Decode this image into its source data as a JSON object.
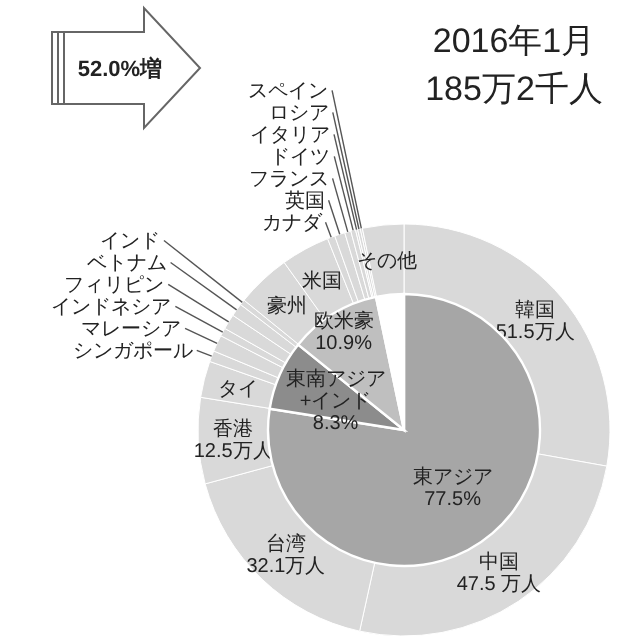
{
  "chart_data": [
    {
      "type": "donut",
      "title": "2016年1月",
      "subtitle": "185万2千人",
      "annotations": [
        "52.0%増"
      ],
      "categories": [
        "韓国",
        "中国",
        "台湾",
        "香港",
        "タイ",
        "シンガポール",
        "マレーシア",
        "インドネシア",
        "フィリピン",
        "ベトナム",
        "インド",
        "豪州",
        "米国",
        "カナダ",
        "英国",
        "フランス",
        "ドイツ",
        "イタリア",
        "ロシア",
        "スペイン",
        "その他"
      ],
      "values": [
        51.5,
        47.5,
        32.1,
        12.5,
        5.3,
        1.6,
        2.4,
        1.2,
        2.2,
        1.9,
        0.8,
        7.9,
        7.1,
        1.1,
        1.5,
        0.9,
        0.7,
        0.3,
        0.4,
        0.3,
        6.0
      ],
      "colors": [
        "#d9d9d9",
        "#d9d9d9",
        "#d9d9d9",
        "#d9d9d9",
        "#d9d9d9",
        "#d9d9d9",
        "#d9d9d9",
        "#d9d9d9",
        "#d9d9d9",
        "#d9d9d9",
        "#d9d9d9",
        "#d9d9d9",
        "#d9d9d9",
        "#d9d9d9",
        "#d9d9d9",
        "#d9d9d9",
        "#d9d9d9",
        "#d9d9d9",
        "#d9d9d9",
        "#d9d9d9",
        "#d9d9d9"
      ],
      "value_labels": [
        "51.5万人",
        "47.5 万人",
        "32.1万人",
        "12.5万人",
        null,
        null,
        null,
        null,
        null,
        null,
        null,
        null,
        null,
        null,
        null,
        null,
        null,
        null,
        null,
        null,
        null
      ]
    },
    {
      "type": "pie",
      "categories": [
        "東アジア",
        "東南アジア\n+インド",
        "欧米豪",
        null
      ],
      "values": [
        77.5,
        8.3,
        10.9,
        3.3
      ],
      "colors": [
        "#a6a6a6",
        "#8c8c8c",
        "#bfbfbf",
        "#ffffff"
      ],
      "value_labels": [
        "77.5%",
        "8.3%",
        "10.9%",
        null
      ]
    }
  ]
}
